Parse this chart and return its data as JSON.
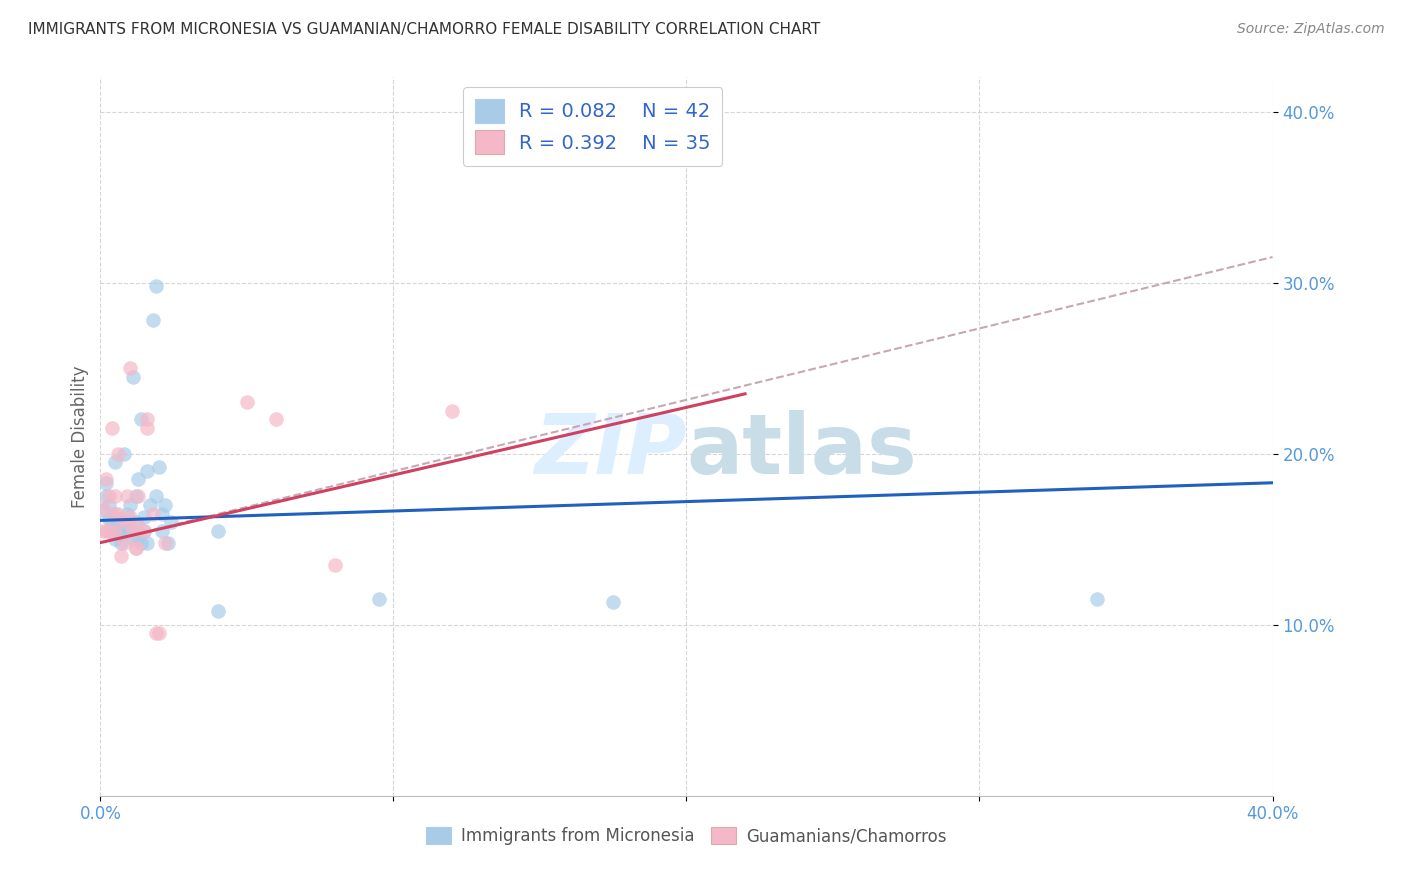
{
  "title": "IMMIGRANTS FROM MICRONESIA VS GUAMANIAN/CHAMORRO FEMALE DISABILITY CORRELATION CHART",
  "source_text": "Source: ZipAtlas.com",
  "ylabel": "Female Disability",
  "xlim": [
    0.0,
    0.4
  ],
  "ylim": [
    0.0,
    0.42
  ],
  "color_blue": "#a8cce8",
  "color_pink": "#f4b8c8",
  "line_color_blue": "#2060c0",
  "line_color_pink": "#d04060",
  "line_color_dash": "#c8a8b0",
  "background_color": "#ffffff",
  "grid_color": "#cccccc",
  "title_color": "#333333",
  "tick_color": "#5599dd",
  "watermark_color": "#ddeeff",
  "legend_text_color": "#3366cc",
  "blue_points": [
    [
      0.001,
      0.167
    ],
    [
      0.002,
      0.183
    ],
    [
      0.002,
      0.175
    ],
    [
      0.003,
      0.162
    ],
    [
      0.003,
      0.17
    ],
    [
      0.004,
      0.155
    ],
    [
      0.004,
      0.16
    ],
    [
      0.005,
      0.195
    ],
    [
      0.005,
      0.15
    ],
    [
      0.005,
      0.165
    ],
    [
      0.006,
      0.16
    ],
    [
      0.006,
      0.155
    ],
    [
      0.007,
      0.153
    ],
    [
      0.007,
      0.148
    ],
    [
      0.008,
      0.2
    ],
    [
      0.008,
      0.16
    ],
    [
      0.009,
      0.165
    ],
    [
      0.009,
      0.155
    ],
    [
      0.01,
      0.17
    ],
    [
      0.01,
      0.155
    ],
    [
      0.011,
      0.245
    ],
    [
      0.011,
      0.15
    ],
    [
      0.012,
      0.16
    ],
    [
      0.012,
      0.175
    ],
    [
      0.013,
      0.185
    ],
    [
      0.013,
      0.15
    ],
    [
      0.014,
      0.22
    ],
    [
      0.014,
      0.148
    ],
    [
      0.015,
      0.155
    ],
    [
      0.015,
      0.163
    ],
    [
      0.016,
      0.19
    ],
    [
      0.016,
      0.148
    ],
    [
      0.017,
      0.17
    ],
    [
      0.018,
      0.278
    ],
    [
      0.019,
      0.298
    ],
    [
      0.019,
      0.175
    ],
    [
      0.02,
      0.192
    ],
    [
      0.021,
      0.165
    ],
    [
      0.021,
      0.155
    ],
    [
      0.022,
      0.17
    ],
    [
      0.023,
      0.148
    ],
    [
      0.024,
      0.16
    ],
    [
      0.04,
      0.108
    ],
    [
      0.04,
      0.155
    ],
    [
      0.095,
      0.115
    ],
    [
      0.175,
      0.113
    ],
    [
      0.34,
      0.115
    ]
  ],
  "pink_points": [
    [
      0.001,
      0.168
    ],
    [
      0.001,
      0.155
    ],
    [
      0.002,
      0.185
    ],
    [
      0.002,
      0.155
    ],
    [
      0.003,
      0.175
    ],
    [
      0.003,
      0.155
    ],
    [
      0.004,
      0.215
    ],
    [
      0.004,
      0.165
    ],
    [
      0.005,
      0.175
    ],
    [
      0.005,
      0.155
    ],
    [
      0.006,
      0.165
    ],
    [
      0.006,
      0.2
    ],
    [
      0.007,
      0.14
    ],
    [
      0.007,
      0.162
    ],
    [
      0.008,
      0.148
    ],
    [
      0.009,
      0.16
    ],
    [
      0.009,
      0.175
    ],
    [
      0.01,
      0.25
    ],
    [
      0.01,
      0.163
    ],
    [
      0.011,
      0.155
    ],
    [
      0.012,
      0.145
    ],
    [
      0.012,
      0.145
    ],
    [
      0.013,
      0.175
    ],
    [
      0.013,
      0.158
    ],
    [
      0.015,
      0.155
    ],
    [
      0.016,
      0.215
    ],
    [
      0.016,
      0.22
    ],
    [
      0.018,
      0.165
    ],
    [
      0.019,
      0.095
    ],
    [
      0.02,
      0.095
    ],
    [
      0.022,
      0.148
    ],
    [
      0.05,
      0.23
    ],
    [
      0.06,
      0.22
    ],
    [
      0.08,
      0.135
    ],
    [
      0.12,
      0.225
    ]
  ],
  "blue_line": [
    0.0,
    0.161,
    0.4,
    0.183
  ],
  "pink_line": [
    0.0,
    0.148,
    0.22,
    0.235
  ],
  "dash_line": [
    0.0,
    0.148,
    0.4,
    0.315
  ]
}
